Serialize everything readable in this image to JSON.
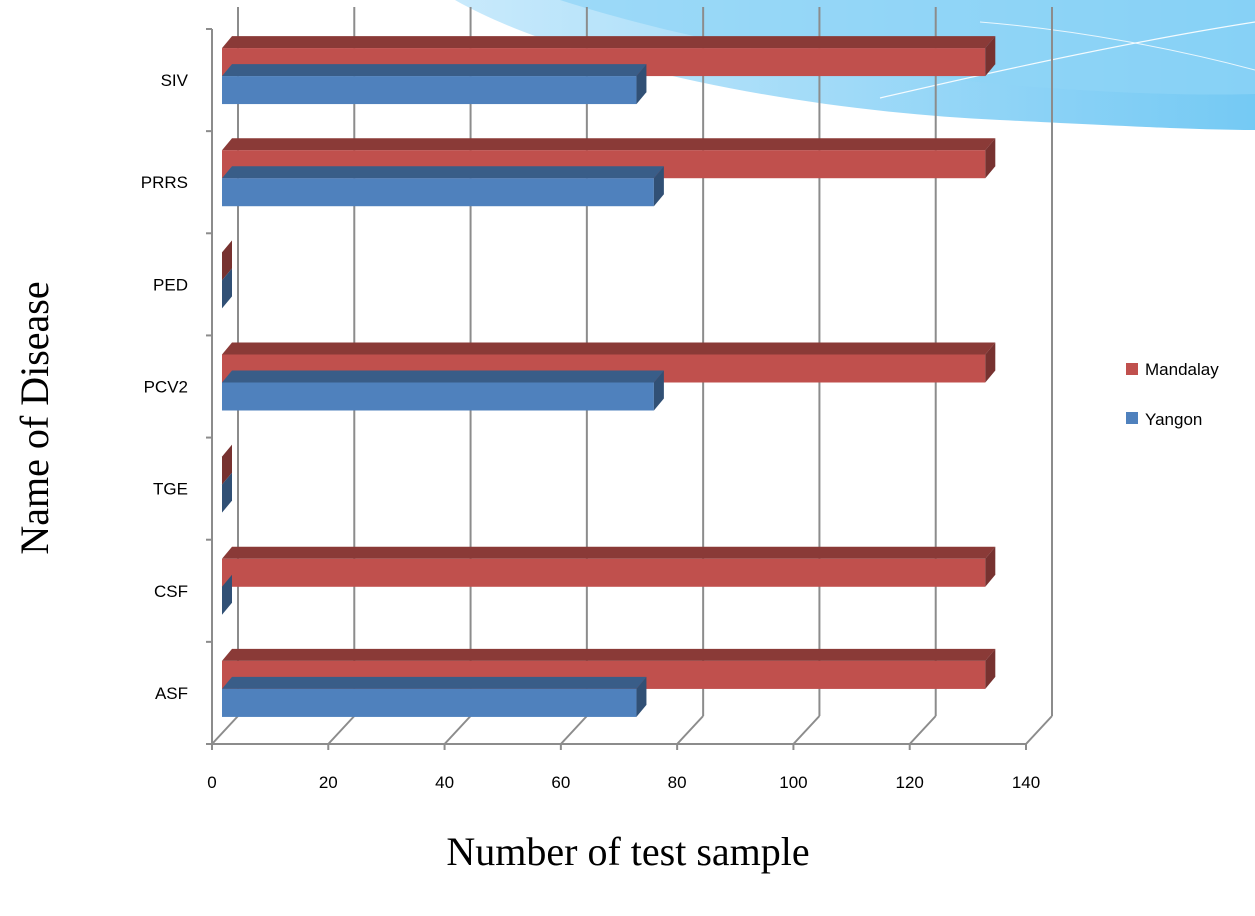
{
  "chart_data": {
    "type": "bar",
    "orientation": "horizontal",
    "three_d": true,
    "categories": [
      "ASF",
      "CSF",
      "TGE",
      "PCV2",
      "PED",
      "PRRS",
      "SIV"
    ],
    "series": [
      {
        "name": "Mandalay",
        "color": "#c0504d",
        "values": [
          133,
          133,
          0,
          133,
          0,
          133,
          133
        ]
      },
      {
        "name": "Yangon",
        "color": "#4f81bd",
        "values": [
          73,
          0,
          1,
          76,
          1,
          76,
          73
        ]
      }
    ],
    "xlabel": "Number of test sample",
    "ylabel": "Name of Disease",
    "xlim": [
      0,
      140
    ],
    "xticks": [
      0,
      20,
      40,
      60,
      80,
      100,
      120,
      140
    ],
    "grid": true,
    "legend_position": "right"
  }
}
